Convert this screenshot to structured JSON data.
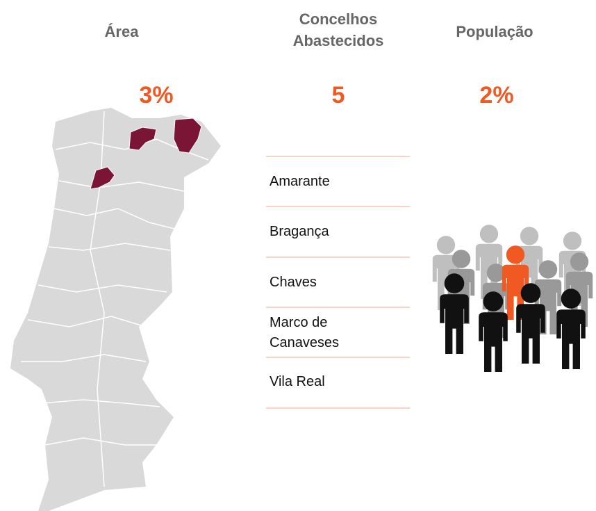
{
  "columns": [
    {
      "title": "Área",
      "value": "3%"
    },
    {
      "title": "Concelhos Abastecidos",
      "value": "5"
    },
    {
      "title": "População",
      "value": "2%"
    }
  ],
  "municipalities": [
    "Amarante",
    "Bragança",
    "Chaves",
    "Marco de Canaveses",
    "Vila Real"
  ]
}
